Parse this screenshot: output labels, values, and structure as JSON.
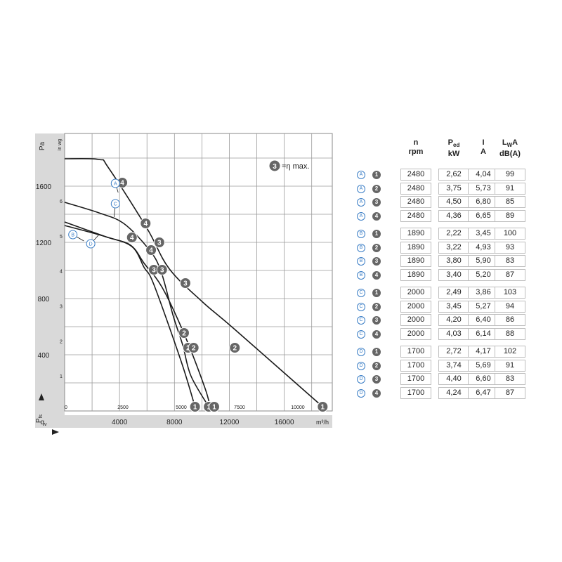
{
  "chart_data": {
    "type": "line",
    "title": "",
    "y_unit_left": "Pa",
    "y_unit_inner": "in wg",
    "y_label": "P fs",
    "y_ticks": [
      "400",
      "800",
      "1200",
      "1600"
    ],
    "y_inner_ticks": [
      "1",
      "2",
      "3",
      "4",
      "5",
      "6"
    ],
    "x_label": "qv",
    "x_unit_bottom": "m³/h",
    "x_unit_inner": "cfm",
    "x_ticks": [
      "4000",
      "8000",
      "12000",
      "16000"
    ],
    "x_inner_ticks": [
      "0",
      "2500",
      "5000",
      "7500",
      "10000"
    ],
    "xlim": [
      0,
      19500
    ],
    "ylim": [
      0,
      1975
    ],
    "efficiency_label": "=η max.",
    "efficiency_badge": "3",
    "series": [
      {
        "name": "A",
        "x": [
          0,
          2500,
          3200,
          6000,
          7600,
          10000,
          12400,
          18800
        ],
        "y": [
          1795,
          1790,
          1730,
          1300,
          1015,
          780,
          580,
          30
        ]
      },
      {
        "name": "C",
        "x": [
          0,
          2500,
          4300,
          6100,
          7000,
          7900,
          8600,
          9200,
          10500
        ],
        "y": [
          1485,
          1410,
          1335,
          1155,
          1000,
          680,
          470,
          250,
          30
        ]
      },
      {
        "name": "B",
        "x": [
          0,
          3000,
          4800,
          5800,
          7100,
          8700,
          10200,
          10600
        ],
        "y": [
          1345,
          1240,
          1180,
          1050,
          880,
          550,
          170,
          30
        ]
      },
      {
        "name": "D",
        "x": [
          0,
          3000,
          4900,
          5800,
          6500,
          8500,
          9500
        ],
        "y": [
          1320,
          1240,
          1170,
          1020,
          900,
          350,
          30
        ]
      }
    ],
    "operating_points": [
      {
        "label": "1",
        "x": 9500,
        "y": 30
      },
      {
        "label": "1",
        "x": 10500,
        "y": 30
      },
      {
        "label": "1",
        "x": 10900,
        "y": 30
      },
      {
        "label": "1",
        "x": 18800,
        "y": 30
      },
      {
        "label": "2",
        "x": 8700,
        "y": 555
      },
      {
        "label": "2",
        "x": 9000,
        "y": 450
      },
      {
        "label": "2",
        "x": 9400,
        "y": 450
      },
      {
        "label": "2",
        "x": 12400,
        "y": 450
      },
      {
        "label": "3",
        "x": 6500,
        "y": 1005
      },
      {
        "label": "3",
        "x": 7100,
        "y": 1005
      },
      {
        "label": "3",
        "x": 6900,
        "y": 1200
      },
      {
        "label": "3",
        "x": 8800,
        "y": 910
      },
      {
        "label": "4",
        "x": 4200,
        "y": 1625
      },
      {
        "label": "4",
        "x": 4900,
        "y": 1235
      },
      {
        "label": "4",
        "x": 5900,
        "y": 1335
      },
      {
        "label": "4",
        "x": 6300,
        "y": 1145
      }
    ],
    "curve_labels": [
      {
        "name": "A",
        "x": 3700,
        "y": 1620
      },
      {
        "name": "C",
        "x": 3700,
        "y": 1475
      },
      {
        "name": "B",
        "x": 600,
        "y": 1255
      },
      {
        "name": "D",
        "x": 1900,
        "y": 1190
      }
    ]
  },
  "table": {
    "headers": [
      {
        "top": "n",
        "sub": "",
        "bottom": "rpm"
      },
      {
        "top": "P",
        "sub": "ed",
        "bottom": "kW"
      },
      {
        "top": "I",
        "sub": "",
        "bottom": "A"
      },
      {
        "top": "L",
        "sub": "W",
        "top_suffix": "A",
        "bottom": "dB(A)"
      }
    ],
    "rows": [
      {
        "curve": "A",
        "point": "1",
        "n": "2480",
        "p": "2,62",
        "i": "4,04",
        "l": "99"
      },
      {
        "curve": "A",
        "point": "2",
        "n": "2480",
        "p": "3,75",
        "i": "5,73",
        "l": "91"
      },
      {
        "curve": "A",
        "point": "3",
        "n": "2480",
        "p": "4,50",
        "i": "6,80",
        "l": "85"
      },
      {
        "curve": "A",
        "point": "4",
        "n": "2480",
        "p": "4,36",
        "i": "6,65",
        "l": "89"
      },
      {
        "curve": "B",
        "point": "1",
        "n": "1890",
        "p": "2,22",
        "i": "3,45",
        "l": "100"
      },
      {
        "curve": "B",
        "point": "2",
        "n": "1890",
        "p": "3,22",
        "i": "4,93",
        "l": "93"
      },
      {
        "curve": "B",
        "point": "3",
        "n": "1890",
        "p": "3,80",
        "i": "5,90",
        "l": "83"
      },
      {
        "curve": "B",
        "point": "4",
        "n": "1890",
        "p": "3,40",
        "i": "5,20",
        "l": "87"
      },
      {
        "curve": "C",
        "point": "1",
        "n": "2000",
        "p": "2,49",
        "i": "3,86",
        "l": "103"
      },
      {
        "curve": "C",
        "point": "2",
        "n": "2000",
        "p": "3,45",
        "i": "5,27",
        "l": "94"
      },
      {
        "curve": "C",
        "point": "3",
        "n": "2000",
        "p": "4,20",
        "i": "6,40",
        "l": "86"
      },
      {
        "curve": "C",
        "point": "4",
        "n": "2000",
        "p": "4,03",
        "i": "6,14",
        "l": "88"
      },
      {
        "curve": "D",
        "point": "1",
        "n": "1700",
        "p": "2,72",
        "i": "4,17",
        "l": "102"
      },
      {
        "curve": "D",
        "point": "2",
        "n": "1700",
        "p": "3,74",
        "i": "5,69",
        "l": "91"
      },
      {
        "curve": "D",
        "point": "3",
        "n": "1700",
        "p": "4,40",
        "i": "6,60",
        "l": "83"
      },
      {
        "curve": "D",
        "point": "4",
        "n": "1700",
        "p": "4,24",
        "i": "6,47",
        "l": "87"
      }
    ]
  },
  "colors": {
    "curve": "#1a1a1a",
    "grid": "#9a9a9a",
    "axis_band": "#d9d9d9",
    "badge_dark": "#666666",
    "badge_blue": "#3b7ec6",
    "cell_border": "#bdbdbd"
  }
}
